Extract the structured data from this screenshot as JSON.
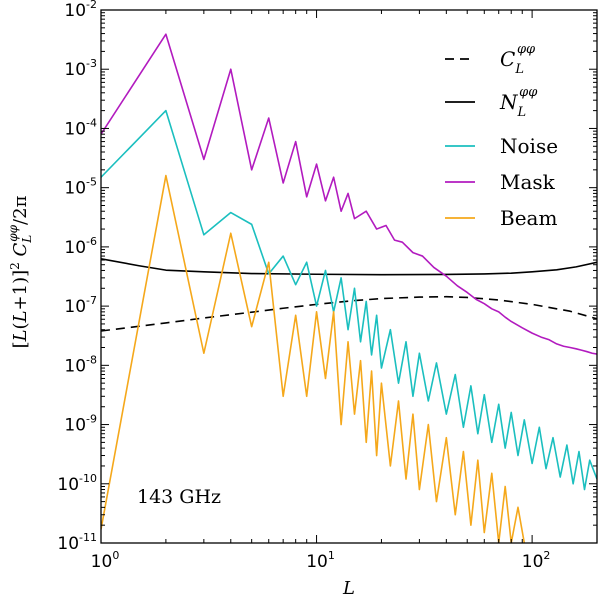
{
  "chart_data": {
    "type": "line",
    "title": "",
    "xlabel": "L",
    "ylabel": "[L(L+1)]² C_L^φφ / 2π",
    "xscale": "log",
    "yscale": "log",
    "xlim": [
      1,
      200
    ],
    "ylim": [
      1e-11,
      0.01
    ],
    "annotation": "143 GHz",
    "legend_position": "top-right",
    "x_ticks": [
      {
        "value": 1,
        "base": "10",
        "exp": "0"
      },
      {
        "value": 10,
        "base": "10",
        "exp": "1"
      },
      {
        "value": 100,
        "base": "10",
        "exp": "2"
      }
    ],
    "y_ticks": [
      {
        "value": 1e-11,
        "base": "10",
        "exp": "-11"
      },
      {
        "value": 1e-10,
        "base": "10",
        "exp": "-10"
      },
      {
        "value": 1e-09,
        "base": "10",
        "exp": "-9"
      },
      {
        "value": 1e-08,
        "base": "10",
        "exp": "-8"
      },
      {
        "value": 1e-07,
        "base": "10",
        "exp": "-7"
      },
      {
        "value": 1e-06,
        "base": "10",
        "exp": "-6"
      },
      {
        "value": 1e-05,
        "base": "10",
        "exp": "-5"
      },
      {
        "value": 0.0001,
        "base": "10",
        "exp": "-4"
      },
      {
        "value": 0.001,
        "base": "10",
        "exp": "-3"
      },
      {
        "value": 0.01,
        "base": "10",
        "exp": "-2"
      }
    ],
    "series": [
      {
        "name": "C_L^φφ",
        "label": "C",
        "label_sub": "L",
        "label_sup": "φφ",
        "color": "#000000",
        "dash": "dashed",
        "x": [
          1,
          2,
          3,
          5,
          7,
          10,
          15,
          20,
          30,
          40,
          50,
          70,
          100,
          150,
          200
        ],
        "y": [
          3.8e-08,
          5.2e-08,
          6.3e-08,
          7.9e-08,
          9.2e-08,
          1.07e-07,
          1.24e-07,
          1.34e-07,
          1.42e-07,
          1.44e-07,
          1.4e-07,
          1.27e-07,
          1.07e-07,
          8.2e-08,
          6.1e-08
        ]
      },
      {
        "name": "N_L^φφ",
        "label": "N",
        "label_sub": "L",
        "label_sup": "φφ",
        "color": "#000000",
        "dash": "solid",
        "x": [
          1,
          1.5,
          2,
          3,
          5,
          10,
          20,
          40,
          60,
          80,
          100,
          130,
          160,
          200
        ],
        "y": [
          6.3e-07,
          4.8e-07,
          4.05e-07,
          3.8e-07,
          3.55e-07,
          3.45e-07,
          3.4e-07,
          3.42e-07,
          3.5e-07,
          3.6e-07,
          3.8e-07,
          4.1e-07,
          4.6e-07,
          5.5e-07
        ]
      },
      {
        "name": "Noise",
        "label": "Noise",
        "color": "#1bbfbf",
        "dash": "solid",
        "x": [
          1,
          2,
          3,
          4,
          5,
          6,
          7,
          8,
          9,
          10,
          11,
          12,
          13,
          14,
          15,
          16,
          17,
          18,
          19,
          20,
          22,
          24,
          26,
          28,
          30,
          33,
          36,
          40,
          44,
          48,
          52,
          56,
          60,
          65,
          70,
          75,
          80,
          86,
          92,
          100,
          108,
          116,
          125,
          135,
          145,
          155,
          165,
          175,
          185,
          200
        ],
        "y": [
          1.5e-05,
          0.0002,
          1.6e-06,
          3.8e-06,
          2.4e-06,
          3.5e-07,
          7e-07,
          2.3e-07,
          5.5e-07,
          1e-07,
          4e-07,
          8e-08,
          3e-07,
          4e-08,
          2e-07,
          2.5e-08,
          1.2e-07,
          1.5e-08,
          7e-08,
          9e-09,
          4e-08,
          5e-09,
          2.5e-08,
          3e-09,
          1.6e-08,
          2.5e-09,
          1.1e-08,
          1.5e-09,
          7e-09,
          9e-10,
          4.5e-09,
          7e-10,
          3.2e-09,
          5e-10,
          2.2e-09,
          4e-10,
          1.6e-09,
          3e-10,
          1.2e-09,
          2.2e-10,
          9e-10,
          1.8e-10,
          6e-10,
          1.3e-10,
          4.5e-10,
          1e-10,
          3.5e-10,
          8e-11,
          2.5e-10,
          1.2e-10
        ]
      },
      {
        "name": "Mask",
        "label": "Mask",
        "color": "#b21bbf",
        "dash": "solid",
        "x": [
          1,
          2,
          3,
          4,
          5,
          6,
          7,
          8,
          9,
          10,
          11,
          12,
          13,
          14,
          15,
          17,
          19,
          21,
          23,
          25,
          28,
          31,
          35,
          40,
          45,
          50,
          55,
          60,
          65,
          70,
          75,
          80,
          90,
          100,
          110,
          120,
          130,
          140,
          150,
          160,
          170,
          180,
          190,
          200
        ],
        "y": [
          8e-05,
          0.0039,
          3e-05,
          0.001,
          2e-05,
          0.00015,
          1.2e-05,
          6e-05,
          7e-06,
          2.5e-05,
          6e-06,
          1.5e-05,
          4e-06,
          8e-06,
          3e-06,
          4e-06,
          2e-06,
          2.3e-06,
          1.3e-06,
          1.2e-06,
          8e-07,
          7e-07,
          4.5e-07,
          3.2e-07,
          2.2e-07,
          1.7e-07,
          1.3e-07,
          1.1e-07,
          9e-08,
          8e-08,
          6.5e-08,
          5.5e-08,
          4.3e-08,
          3.5e-08,
          3e-08,
          2.7e-08,
          2.3e-08,
          2.1e-08,
          2e-08,
          1.9e-08,
          1.8e-08,
          1.7e-08,
          1.6e-08,
          1.55e-08
        ]
      },
      {
        "name": "Beam",
        "label": "Beam",
        "color": "#f5a81b",
        "dash": "solid",
        "x": [
          1,
          2,
          3,
          4,
          5,
          6,
          7,
          8,
          9,
          10,
          11,
          12,
          13,
          14,
          15,
          16,
          17,
          18,
          19,
          20,
          22,
          24,
          26,
          28,
          30,
          33,
          36,
          40,
          44,
          48,
          52,
          56,
          60,
          65,
          70,
          75,
          80,
          86,
          92
        ],
        "y": [
          1.7e-11,
          1.6e-05,
          1.6e-08,
          1.7e-06,
          4.5e-08,
          5.5e-07,
          3e-09,
          7e-08,
          3e-09,
          8e-08,
          6e-09,
          8e-08,
          1e-09,
          2.5e-08,
          1.5e-09,
          1.2e-08,
          5e-10,
          8e-09,
          3e-10,
          5e-09,
          2e-10,
          2.5e-09,
          1.2e-10,
          1.5e-09,
          8e-11,
          1e-09,
          5e-11,
          6e-10,
          3e-11,
          3.5e-10,
          2e-11,
          2.5e-10,
          1.5e-11,
          1.5e-10,
          1e-11,
          9e-11,
          1e-11,
          4e-11,
          1e-11
        ]
      }
    ]
  }
}
